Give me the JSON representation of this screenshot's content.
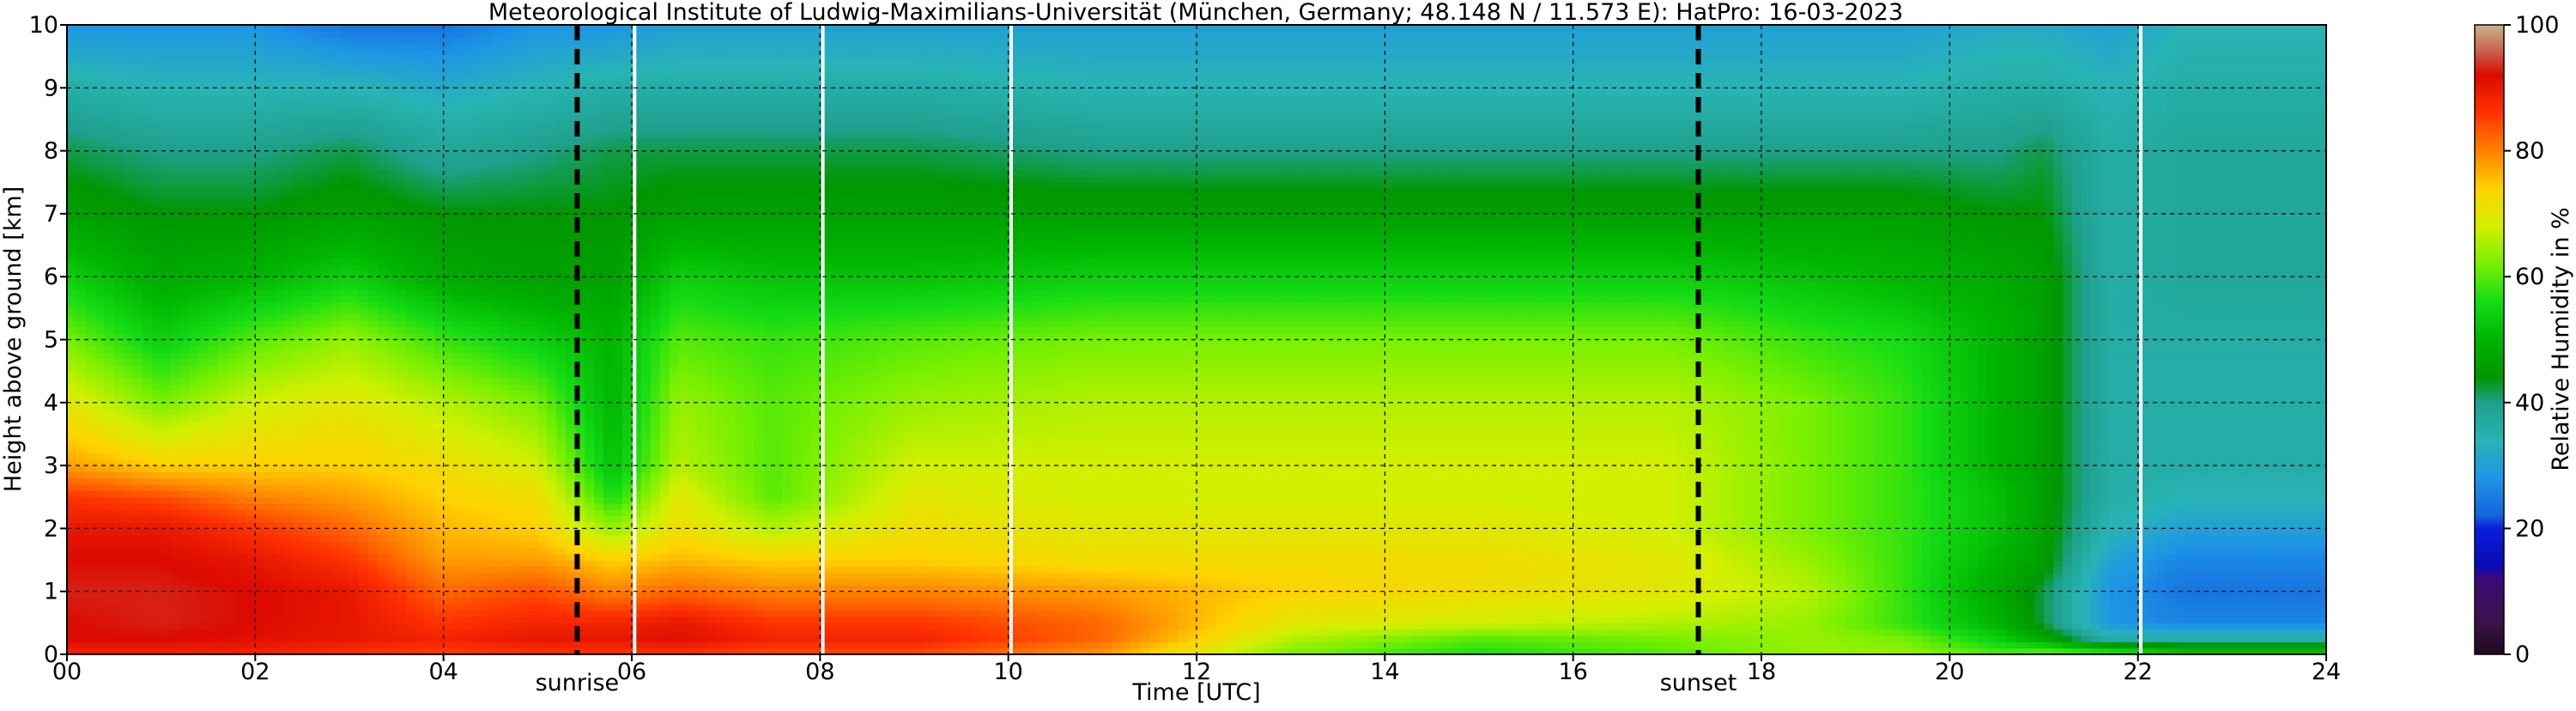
{
  "chart_data": {
    "type": "heatmap",
    "title": "Meteorological Institute of Ludwig-Maximilians-Universität (München, Germany; 48.148 N / 11.573 E):    HatPro: 16-03-2023",
    "xlabel": "Time [UTC]",
    "ylabel": "Height above ground [km]",
    "xlim": [
      0,
      24
    ],
    "ylim": [
      0,
      10
    ],
    "x_ticks": [
      0,
      2,
      4,
      6,
      8,
      10,
      12,
      14,
      16,
      18,
      20,
      22,
      24
    ],
    "x_tick_labels": [
      "00",
      "02",
      "04",
      "06",
      "08",
      "10",
      "12",
      "14",
      "16",
      "18",
      "20",
      "22",
      "24"
    ],
    "y_ticks": [
      0,
      1,
      2,
      3,
      4,
      5,
      6,
      7,
      8,
      9,
      10
    ],
    "y_tick_labels": [
      "0",
      "1",
      "2",
      "3",
      "4",
      "5",
      "6",
      "7",
      "8",
      "9",
      "10"
    ],
    "grid": true,
    "colorbar": {
      "label": "Relative Humidity in %",
      "range": [
        0,
        100
      ],
      "ticks": [
        0,
        20,
        40,
        60,
        80,
        100
      ],
      "tick_labels": [
        "0",
        "20",
        "40",
        "60",
        "80",
        "100"
      ],
      "stops": [
        {
          "value": 0,
          "color": "#1e0a1e"
        },
        {
          "value": 5,
          "color": "#3c1248"
        },
        {
          "value": 12,
          "color": "#3c0a78"
        },
        {
          "value": 14,
          "color": "#0a0ab4"
        },
        {
          "value": 20,
          "color": "#0a1edc"
        },
        {
          "value": 22,
          "color": "#1464dc"
        },
        {
          "value": 28,
          "color": "#1e96e6"
        },
        {
          "value": 34,
          "color": "#28b4b4"
        },
        {
          "value": 40,
          "color": "#1ea08c"
        },
        {
          "value": 44,
          "color": "#009600"
        },
        {
          "value": 50,
          "color": "#00b400"
        },
        {
          "value": 56,
          "color": "#14dc14"
        },
        {
          "value": 62,
          "color": "#78f000"
        },
        {
          "value": 68,
          "color": "#d2f000"
        },
        {
          "value": 74,
          "color": "#ffd200"
        },
        {
          "value": 80,
          "color": "#ff8200"
        },
        {
          "value": 86,
          "color": "#ff3200"
        },
        {
          "value": 92,
          "color": "#dc0a00"
        },
        {
          "value": 96,
          "color": "#c86450"
        },
        {
          "value": 100,
          "color": "#c8b48c"
        }
      ]
    },
    "markers": [
      {
        "label": "sunrise",
        "x": 5.42,
        "style": "dashed",
        "color": "#000000"
      },
      {
        "label": "sunset",
        "x": 17.33,
        "style": "dashed",
        "color": "#000000"
      }
    ],
    "data_gaps": [
      6.03,
      8.03,
      10.03,
      22.03
    ],
    "profile_heights_km": [
      0.0,
      0.25,
      0.5,
      1.0,
      1.5,
      2.0,
      2.5,
      3.0,
      4.0,
      5.0,
      6.0,
      7.0,
      8.0,
      9.0,
      10.0
    ],
    "profiles": [
      {
        "time": 0.0,
        "rh": [
          88,
          92,
          92,
          93,
          92,
          90,
          86,
          78,
          70,
          62,
          54,
          46,
          42,
          36,
          28
        ]
      },
      {
        "time": 1.0,
        "rh": [
          88,
          92,
          93,
          93,
          92,
          90,
          84,
          74,
          62,
          54,
          48,
          44,
          40,
          34,
          28
        ]
      },
      {
        "time": 2.0,
        "rh": [
          88,
          91,
          92,
          92,
          90,
          86,
          80,
          74,
          68,
          60,
          50,
          44,
          40,
          34,
          28
        ]
      },
      {
        "time": 3.0,
        "rh": [
          86,
          90,
          90,
          90,
          86,
          82,
          78,
          74,
          70,
          64,
          54,
          46,
          42,
          34,
          24
        ]
      },
      {
        "time": 4.0,
        "rh": [
          85,
          88,
          86,
          82,
          78,
          76,
          74,
          72,
          66,
          58,
          48,
          44,
          38,
          32,
          24
        ]
      },
      {
        "time": 5.0,
        "rh": [
          86,
          90,
          88,
          84,
          78,
          74,
          72,
          68,
          62,
          54,
          46,
          44,
          40,
          34,
          28
        ]
      },
      {
        "time": 5.8,
        "rh": [
          86,
          90,
          88,
          80,
          74,
          64,
          56,
          52,
          50,
          50,
          46,
          44,
          42,
          36,
          28
        ]
      },
      {
        "time": 6.5,
        "rh": [
          86,
          91,
          90,
          82,
          76,
          72,
          70,
          66,
          64,
          60,
          54,
          46,
          42,
          36,
          30
        ]
      },
      {
        "time": 7.5,
        "rh": [
          84,
          88,
          86,
          80,
          74,
          66,
          60,
          60,
          60,
          58,
          52,
          46,
          42,
          36,
          30
        ]
      },
      {
        "time": 9.0,
        "rh": [
          84,
          88,
          86,
          80,
          74,
          72,
          70,
          68,
          64,
          60,
          52,
          46,
          42,
          36,
          30
        ]
      },
      {
        "time": 11.0,
        "rh": [
          78,
          82,
          82,
          78,
          72,
          70,
          68,
          68,
          66,
          62,
          54,
          46,
          40,
          34,
          30
        ]
      },
      {
        "time": 13.0,
        "rh": [
          62,
          66,
          70,
          74,
          72,
          70,
          68,
          68,
          66,
          62,
          54,
          46,
          40,
          34,
          30
        ]
      },
      {
        "time": 15.0,
        "rh": [
          56,
          60,
          68,
          72,
          72,
          70,
          68,
          68,
          66,
          62,
          54,
          46,
          40,
          34,
          30
        ]
      },
      {
        "time": 17.0,
        "rh": [
          60,
          62,
          66,
          70,
          70,
          68,
          68,
          68,
          66,
          62,
          54,
          46,
          40,
          34,
          30
        ]
      },
      {
        "time": 18.5,
        "rh": [
          64,
          64,
          64,
          66,
          64,
          62,
          62,
          62,
          62,
          58,
          52,
          46,
          40,
          34,
          30
        ]
      },
      {
        "time": 19.5,
        "rh": [
          64,
          62,
          58,
          58,
          58,
          58,
          58,
          58,
          58,
          56,
          50,
          46,
          40,
          34,
          30
        ]
      },
      {
        "time": 20.5,
        "rh": [
          60,
          54,
          50,
          48,
          50,
          52,
          52,
          50,
          50,
          50,
          48,
          44,
          40,
          36,
          32
        ]
      },
      {
        "time": 21.0,
        "rh": [
          62,
          48,
          42,
          42,
          46,
          46,
          46,
          46,
          46,
          46,
          46,
          44,
          42,
          36,
          32
        ]
      },
      {
        "time": 21.7,
        "rh": [
          60,
          36,
          28,
          28,
          30,
          34,
          36,
          36,
          36,
          36,
          36,
          36,
          36,
          34,
          30
        ]
      },
      {
        "time": 22.5,
        "rh": [
          54,
          36,
          26,
          24,
          26,
          30,
          34,
          36,
          36,
          36,
          38,
          38,
          38,
          36,
          34
        ]
      },
      {
        "time": 24.0,
        "rh": [
          54,
          36,
          26,
          24,
          26,
          30,
          34,
          36,
          36,
          36,
          38,
          38,
          38,
          36,
          34
        ]
      }
    ]
  }
}
